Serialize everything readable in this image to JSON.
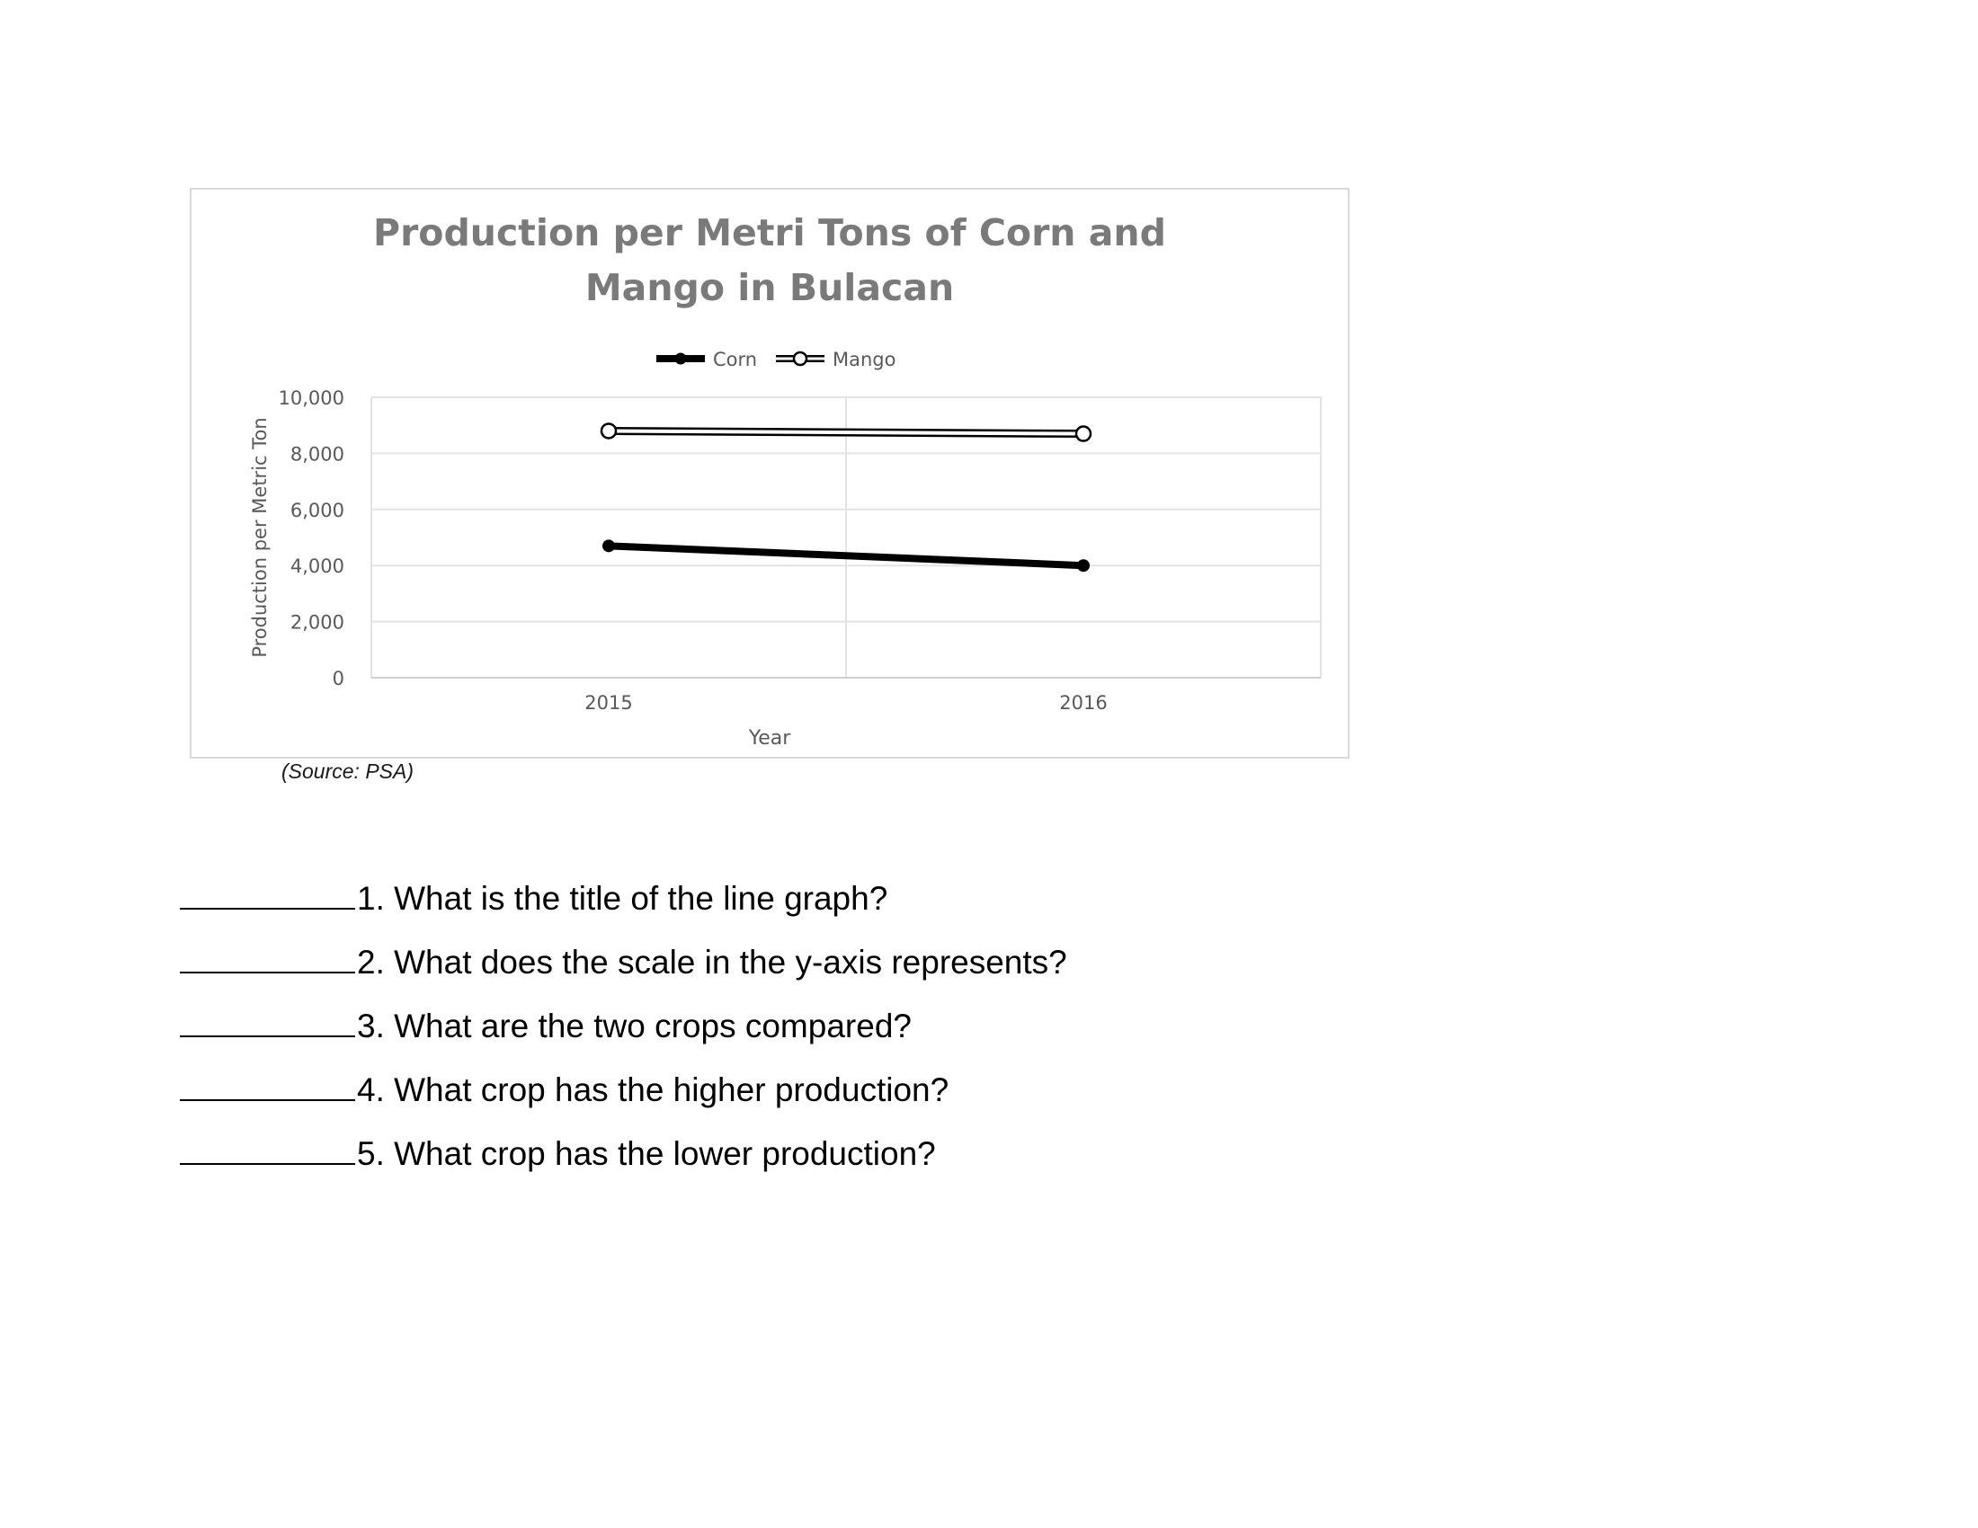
{
  "chart_data": {
    "type": "line",
    "title": "Production per Metri Tons of Corn and Mango in Bulacan",
    "title_lines": [
      "Production per Metri Tons of Corn and",
      "Mango in Bulacan"
    ],
    "categories": [
      "2015",
      "2016"
    ],
    "series": [
      {
        "name": "Corn",
        "values": [
          4700,
          4000
        ],
        "color": "#000000",
        "marker": "filled-circle",
        "line": "thick-solid"
      },
      {
        "name": "Mango",
        "values": [
          8800,
          8700
        ],
        "color": "#000000",
        "marker": "open-circle",
        "line": "double"
      }
    ],
    "xlabel": "Year",
    "ylabel": "Production per Metric Ton",
    "ylim": [
      0,
      10000
    ],
    "yticks": [
      0,
      2000,
      4000,
      6000,
      8000,
      10000
    ],
    "ytick_labels": [
      "0",
      "2,000",
      "4,000",
      "6,000",
      "8,000",
      "10,000"
    ],
    "grid": true,
    "legend_position": "top"
  },
  "source_note": "(Source: PSA)",
  "questions": [
    {
      "blank": "",
      "text": "1. What is the title of the line graph?"
    },
    {
      "blank": "",
      "text": "2. What does the scale in the y-axis represents?"
    },
    {
      "blank": "",
      "text": "3. What are the two crops compared?"
    },
    {
      "blank": "",
      "text": "4. What crop has the higher production?"
    },
    {
      "blank": "",
      "text": "5. What crop has the lower production?"
    }
  ]
}
